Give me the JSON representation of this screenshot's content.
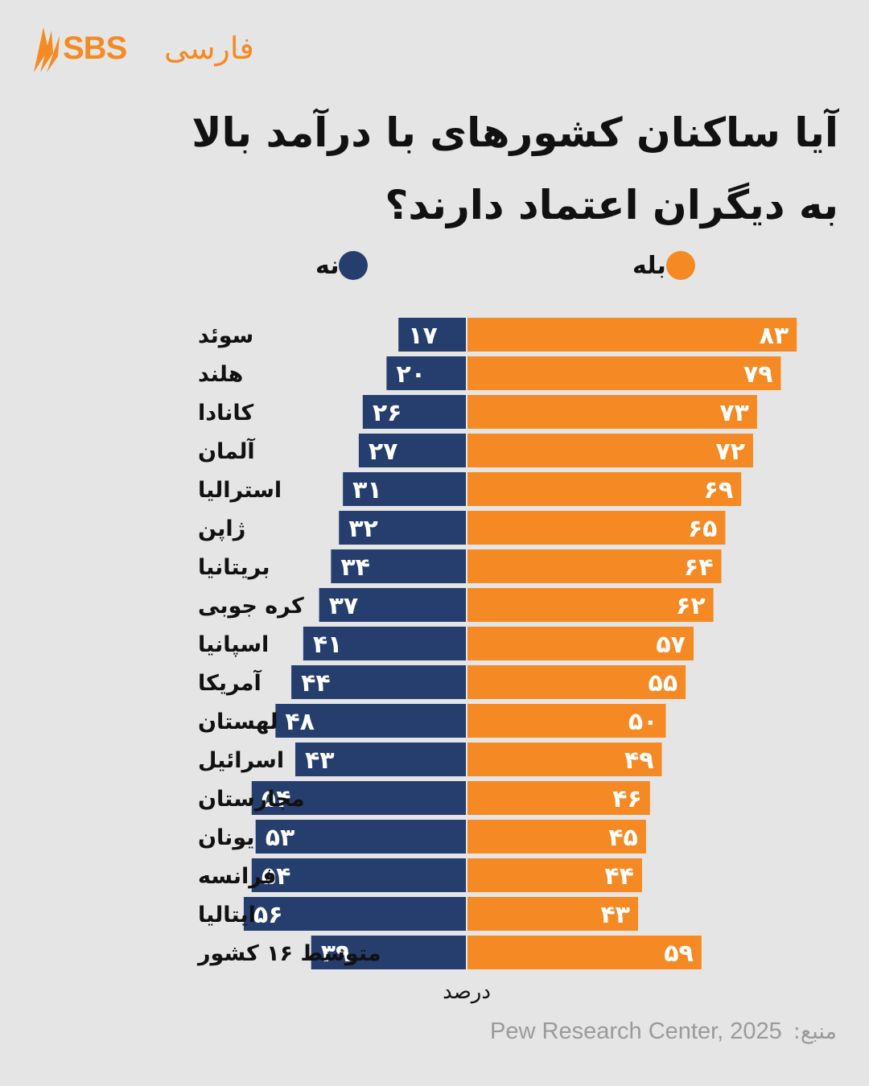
{
  "brand": {
    "logo_text": "SBS",
    "logo_subtext": "فارسی",
    "logo_color": "#f58a24"
  },
  "title": {
    "line1": "آیا ساکنان کشورهای با درآمد بالا",
    "line2": "به دیگران اعتماد دارند؟"
  },
  "legend": {
    "yes": {
      "label": "بله",
      "color": "#f58a24"
    },
    "no": {
      "label": "نه",
      "color": "#253e6e"
    }
  },
  "chart_data": {
    "type": "bar",
    "orientation": "horizontal-diverging",
    "categories": [
      "سوئد",
      "هلند",
      "کانادا",
      "آلمان",
      "استرالیا",
      "ژاپن",
      "بریتانیا",
      "کره جوبی",
      "اسپانیا",
      "آمریکا",
      "لهستان",
      "اسرائیل",
      "مجارستان",
      "یونان",
      "فرانسه",
      "ایتالیا",
      "متوسط ۱۶ کشور"
    ],
    "series": [
      {
        "name": "بله",
        "color": "#f58a24",
        "values": [
          83,
          79,
          73,
          72,
          69,
          65,
          64,
          62,
          57,
          55,
          50,
          49,
          46,
          45,
          44,
          43,
          59
        ],
        "labels": [
          "۸۳",
          "۷۹",
          "۷۳",
          "۷۲",
          "۶۹",
          "۶۵",
          "۶۴",
          "۶۲",
          "۵۷",
          "۵۵",
          "۵۰",
          "۴۹",
          "۴۶",
          "۴۵",
          "۴۴",
          "۴۳",
          "۵۹"
        ]
      },
      {
        "name": "نه",
        "color": "#253e6e",
        "values": [
          17,
          20,
          26,
          27,
          31,
          32,
          34,
          37,
          41,
          44,
          48,
          43,
          54,
          53,
          54,
          56,
          39
        ],
        "labels": [
          "۱۷",
          "۲۰",
          "۲۶",
          "۲۷",
          "۳۱",
          "۳۲",
          "۳۴",
          "۳۷",
          "۴۱",
          "۴۴",
          "۴۸",
          "۴۳",
          "۵۴",
          "۵۳",
          "۵۴",
          "۵۶",
          "۳۹"
        ]
      }
    ],
    "xlabel": "درصد",
    "xlim": [
      0,
      100
    ]
  },
  "source": {
    "label": "منبع:",
    "text": "Pew Research Center, 2025"
  }
}
